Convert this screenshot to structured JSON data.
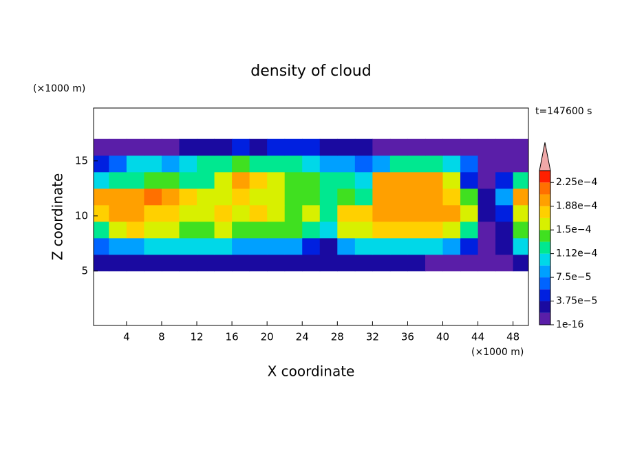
{
  "chart_data": {
    "type": "contour",
    "title": "density of cloud",
    "x_label": "X coordinate",
    "y_label": "Z coordinate",
    "x_unit": "(×1000 m)",
    "y_unit": "(×1000 m)",
    "annotation": "t=147600 s",
    "xlim": [
      0.25,
      49.75
    ],
    "ylim": [
      0.05,
      19.8
    ],
    "xticks": [
      4,
      8,
      12,
      16,
      20,
      24,
      28,
      32,
      36,
      40,
      44,
      48
    ],
    "yticks": [
      5,
      10,
      15
    ],
    "x_edges": [
      0,
      2,
      4,
      6,
      8,
      10,
      12,
      14,
      16,
      18,
      20,
      22,
      24,
      26,
      28,
      30,
      32,
      34,
      36,
      38,
      40,
      42,
      44,
      46,
      48,
      50
    ],
    "z_edges": [
      5,
      6.5,
      8,
      9.5,
      11,
      12.5,
      14,
      15.5,
      17
    ],
    "values": [
      [
        2.8e-05,
        2.8e-05,
        2.8e-05,
        2.8e-05,
        2.8e-05,
        2.8e-05,
        2.8e-05,
        2.8e-05,
        2.8e-05,
        2.8e-05,
        2.8e-05,
        2.8e-05,
        2.8e-05,
        2.8e-05,
        2.8e-05,
        2.8e-05,
        2.8e-05,
        2.8e-05,
        2.8e-05,
        9e-06,
        9e-06,
        9e-06,
        9e-06,
        9e-06,
        2.8e-05
      ],
      [
        6.6e-05,
        8.4e-05,
        8.4e-05,
        0.000103,
        0.000103,
        0.000103,
        0.000103,
        0.000103,
        8.4e-05,
        8.4e-05,
        8.4e-05,
        8.4e-05,
        4.7e-05,
        2.8e-05,
        8.4e-05,
        0.000103,
        0.000103,
        0.000103,
        0.000103,
        0.000103,
        8.4e-05,
        4.7e-05,
        9e-06,
        2.8e-05,
        0.000103
      ],
      [
        0.000122,
        0.00016,
        0.000178,
        0.00016,
        0.00016,
        0.000141,
        0.000141,
        0.00016,
        0.000141,
        0.000141,
        0.000141,
        0.000141,
        0.000122,
        0.000103,
        0.00016,
        0.00016,
        0.000178,
        0.000178,
        0.000178,
        0.000178,
        0.00016,
        0.000122,
        9e-06,
        2.8e-05,
        0.000141
      ],
      [
        0.000178,
        0.000197,
        0.000197,
        0.000178,
        0.000178,
        0.00016,
        0.00016,
        0.000178,
        0.00016,
        0.000178,
        0.00016,
        0.000141,
        0.00016,
        0.000122,
        0.000178,
        0.000178,
        0.000197,
        0.000197,
        0.000197,
        0.000197,
        0.000197,
        0.00016,
        2.8e-05,
        4.7e-05,
        0.00016
      ],
      [
        0.000197,
        0.000197,
        0.000197,
        0.000216,
        0.000197,
        0.000178,
        0.00016,
        0.00016,
        0.000178,
        0.00016,
        0.00016,
        0.000141,
        0.000141,
        0.000122,
        0.000141,
        0.000122,
        0.000197,
        0.000197,
        0.000197,
        0.000197,
        0.000178,
        0.000141,
        2.8e-05,
        8.4e-05,
        0.000197
      ],
      [
        0.000103,
        0.000122,
        0.000122,
        0.000141,
        0.000141,
        0.000122,
        0.000122,
        0.00016,
        0.000197,
        0.000178,
        0.00016,
        0.000141,
        0.000141,
        0.000122,
        0.000122,
        0.000103,
        0.000197,
        0.000197,
        0.000197,
        0.000197,
        0.00016,
        4.7e-05,
        9e-06,
        4.7e-05,
        0.000122
      ],
      [
        4.7e-05,
        6.6e-05,
        0.000103,
        0.000103,
        8.4e-05,
        0.000103,
        0.000122,
        0.000122,
        0.000141,
        0.000122,
        0.000122,
        0.000122,
        0.000103,
        8.4e-05,
        8.4e-05,
        6.6e-05,
        8.4e-05,
        0.000122,
        0.000122,
        0.000122,
        0.000103,
        6.6e-05,
        9e-06,
        9e-06,
        9e-06
      ],
      [
        9e-06,
        9e-06,
        9e-06,
        9e-06,
        9e-06,
        2.8e-05,
        2.8e-05,
        2.8e-05,
        4.7e-05,
        2.8e-05,
        4.7e-05,
        4.7e-05,
        4.7e-05,
        2.8e-05,
        2.8e-05,
        2.8e-05,
        9e-06,
        9e-06,
        9e-06,
        9e-06,
        9e-06,
        9e-06,
        9e-06,
        9e-06,
        9e-06
      ]
    ],
    "levels": [
      1e-16,
      1.875e-05,
      3.75e-05,
      5.625e-05,
      7.5e-05,
      9.375e-05,
      0.0001125,
      0.00013125,
      0.00015,
      0.00016875,
      0.0001875,
      0.00020625,
      0.000225,
      0.00024375
    ],
    "colors": [
      "#5a1ea8",
      "#1a0aa0",
      "#0020e0",
      "#0064ff",
      "#00a0ff",
      "#00d8e8",
      "#00e890",
      "#40e020",
      "#d8f000",
      "#ffd000",
      "#ffa000",
      "#ff7000",
      "#ff2000"
    ],
    "cbar_ticks": [
      {
        "value": 1e-16,
        "label": "1e-16"
      },
      {
        "value": 3.75e-05,
        "label": "3.75e−5"
      },
      {
        "value": 7.5e-05,
        "label": "7.5e−5"
      },
      {
        "value": 0.0001125,
        "label": "1.12e−4"
      },
      {
        "value": 0.00015,
        "label": "1.5e−4"
      },
      {
        "value": 0.0001875,
        "label": "1.88e−4"
      },
      {
        "value": 0.000225,
        "label": "2.25e−4"
      }
    ]
  }
}
